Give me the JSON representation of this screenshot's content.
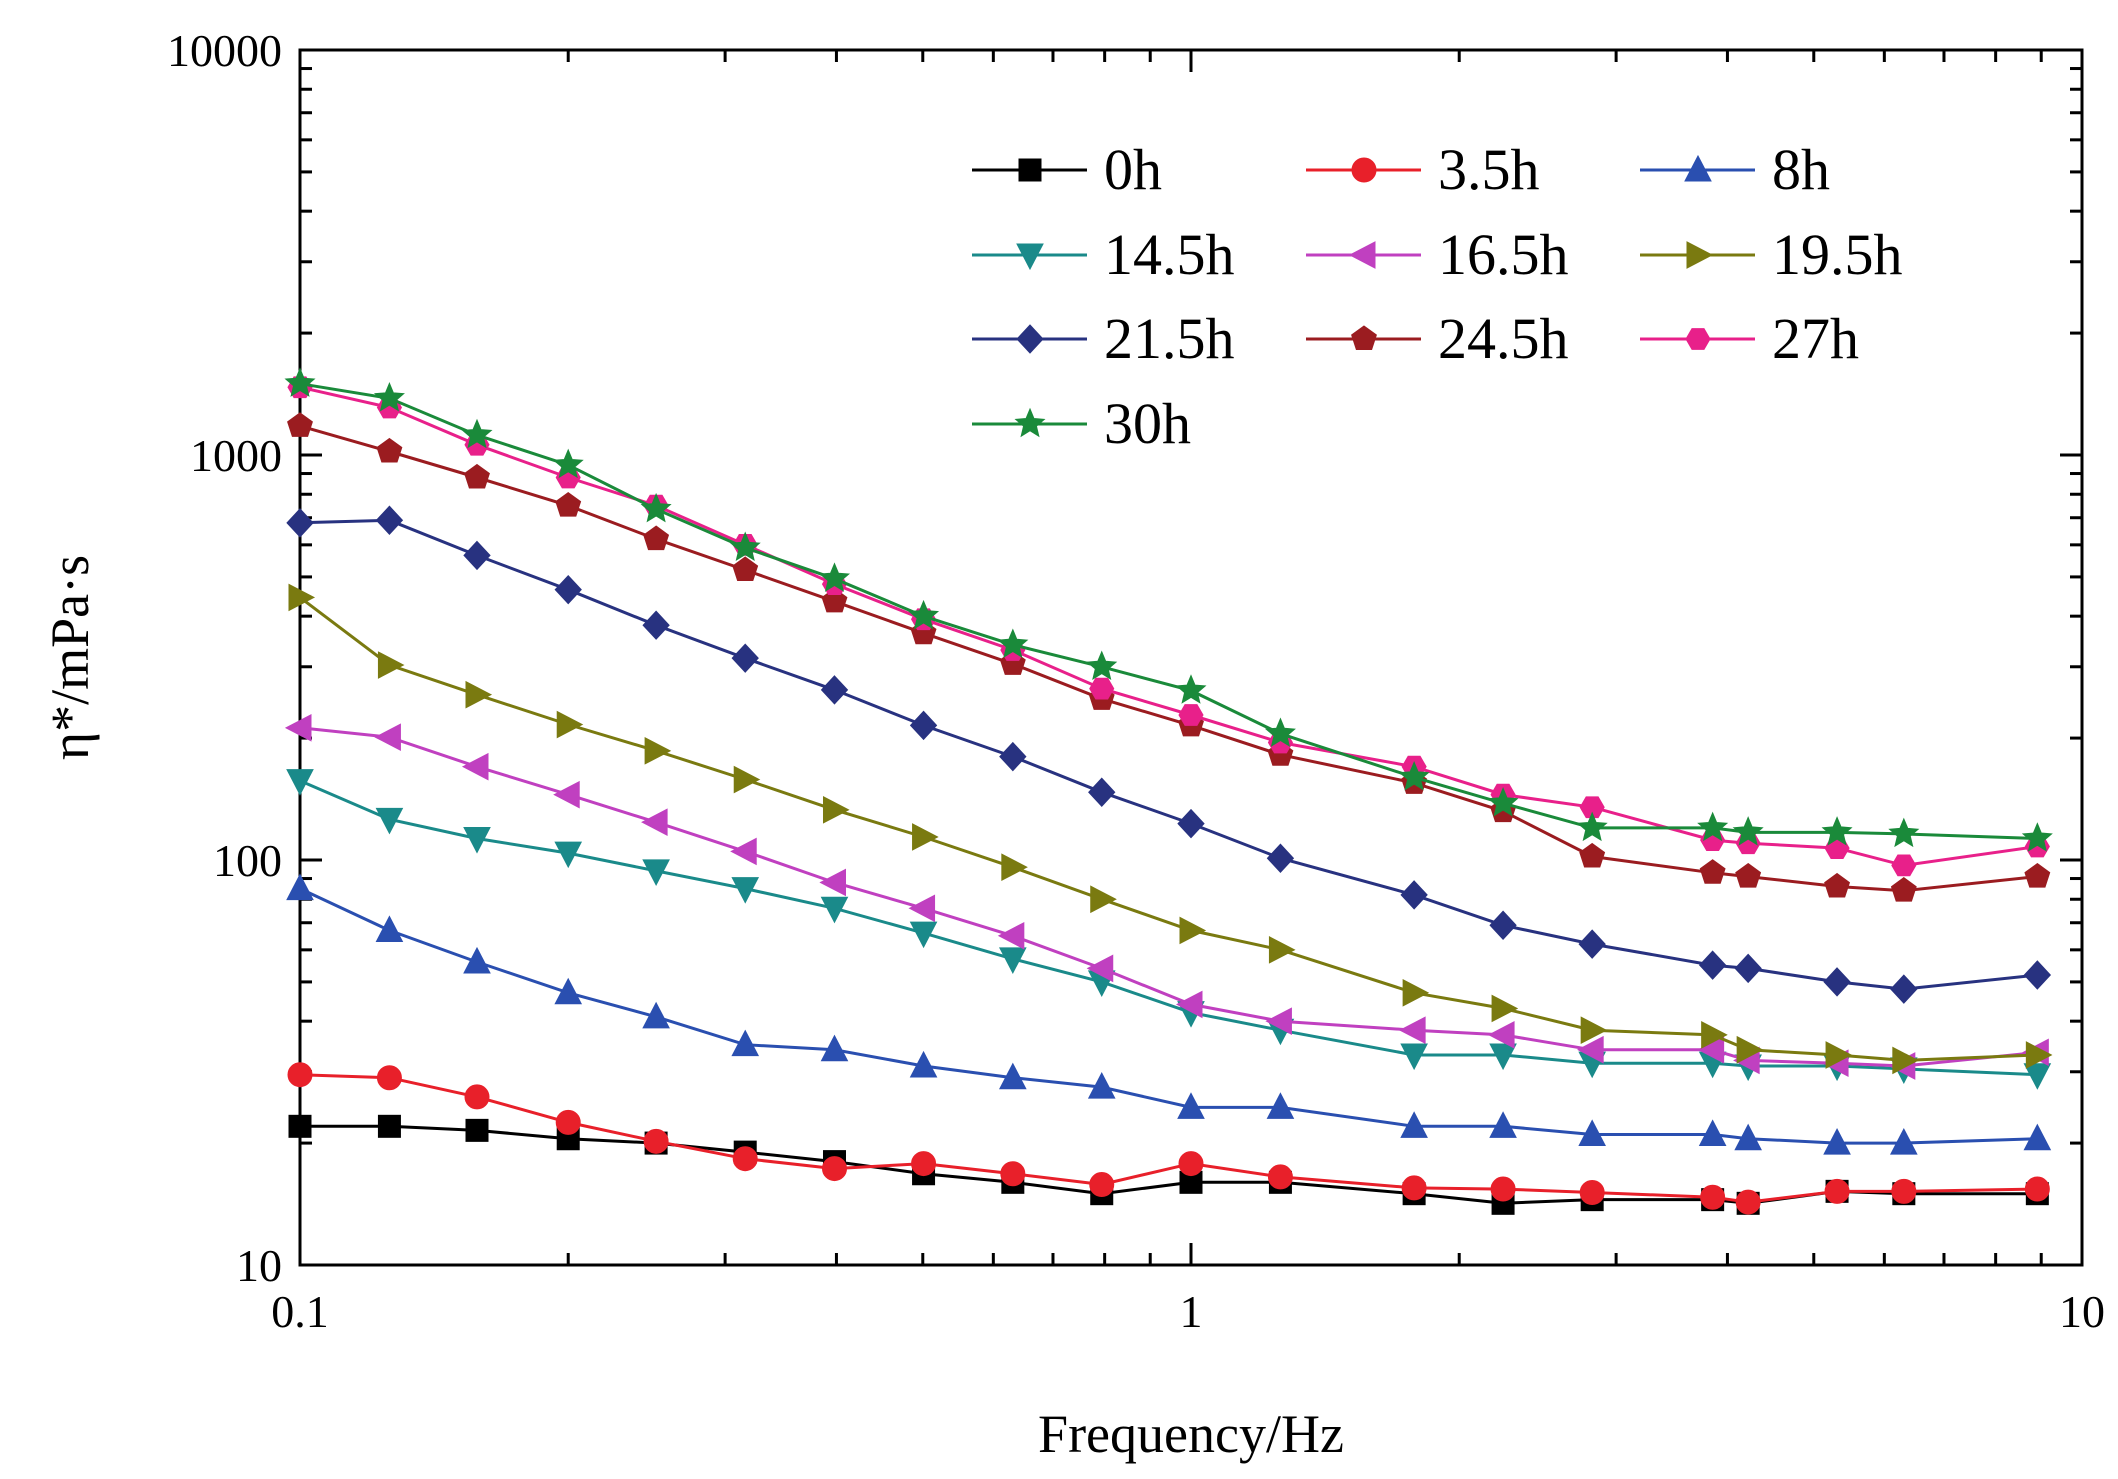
{
  "chart_data": {
    "type": "line",
    "title": "",
    "xlabel": "Frequency/Hz",
    "ylabel": "η*/mPa·s",
    "xscale": "log",
    "yscale": "log",
    "xlim": [
      0.1,
      10
    ],
    "ylim": [
      10,
      10000
    ],
    "xticks": [
      0.1,
      1,
      10
    ],
    "xtick_labels": [
      "0.1",
      "1",
      "10"
    ],
    "yticks": [
      10,
      100,
      1000,
      10000
    ],
    "ytick_labels": [
      "10",
      "100",
      "1000",
      "10000"
    ],
    "grid": false,
    "legend_position": "top-right",
    "x": [
      0.1,
      0.126,
      0.158,
      0.2,
      0.251,
      0.316,
      0.398,
      0.501,
      0.631,
      0.794,
      1.0,
      1.26,
      1.78,
      2.24,
      2.82,
      3.85,
      4.22,
      5.31,
      6.31,
      8.91
    ],
    "series": [
      {
        "name": "0h",
        "color": "#000000",
        "marker": "square",
        "values": [
          22,
          22,
          21.5,
          20.5,
          20,
          19,
          18,
          16.8,
          16,
          15,
          16,
          16,
          15,
          14.2,
          14.5,
          14.5,
          14.2,
          15.2,
          15,
          15
        ]
      },
      {
        "name": "3.5h",
        "color": "#e8202a",
        "marker": "circle",
        "values": [
          29.5,
          29,
          26,
          22.5,
          20.2,
          18.3,
          17.3,
          17.8,
          16.8,
          15.8,
          17.8,
          16.5,
          15.5,
          15.4,
          15.1,
          14.7,
          14.3,
          15.2,
          15.2,
          15.4
        ]
      },
      {
        "name": "8h",
        "color": "#2a4fb0",
        "marker": "triangle-up",
        "values": [
          85,
          67,
          56,
          47,
          41,
          35,
          34,
          31,
          29,
          27.5,
          24.5,
          24.5,
          22,
          22,
          21,
          21,
          20.5,
          20,
          20,
          20.5
        ]
      },
      {
        "name": "14.5h",
        "color": "#1a8a8a",
        "marker": "triangle-down",
        "values": [
          157,
          126,
          113,
          104,
          94,
          85,
          76,
          66,
          57,
          50,
          42,
          38,
          33,
          33,
          31.5,
          31.5,
          31,
          31,
          30.5,
          29.5
        ]
      },
      {
        "name": "16.5h",
        "color": "#c040c0",
        "marker": "triangle-left",
        "values": [
          212,
          201,
          170,
          145,
          124,
          105,
          88,
          76,
          65,
          54,
          44,
          40,
          38,
          37,
          34,
          34,
          32,
          31.5,
          31,
          33.5
        ]
      },
      {
        "name": "19.5h",
        "color": "#7a7a10",
        "marker": "triangle-right",
        "values": [
          445,
          303,
          256,
          216,
          186,
          158,
          133,
          114,
          96,
          80,
          67,
          60,
          47,
          43,
          38,
          37,
          34,
          33,
          32,
          33
        ]
      },
      {
        "name": "21.5h",
        "color": "#283280",
        "marker": "diamond",
        "values": [
          680,
          690,
          565,
          465,
          380,
          315,
          263,
          215,
          180,
          147,
          123,
          101,
          82,
          69,
          62,
          55,
          54,
          50,
          48,
          52
        ]
      },
      {
        "name": "24.5h",
        "color": "#9b1c20",
        "marker": "pentagon",
        "values": [
          1180,
          1020,
          880,
          750,
          620,
          520,
          435,
          363,
          305,
          250,
          215,
          182,
          155,
          132,
          102,
          93,
          91,
          86,
          84,
          91
        ]
      },
      {
        "name": "27h",
        "color": "#e8208a",
        "marker": "hexagon",
        "values": [
          1470,
          1310,
          1060,
          880,
          750,
          600,
          480,
          393,
          330,
          265,
          228,
          195,
          170,
          145,
          135,
          112,
          110,
          107,
          97,
          108
        ]
      },
      {
        "name": "30h",
        "color": "#1a8a3a",
        "marker": "star",
        "values": [
          1500,
          1380,
          1120,
          945,
          735,
          590,
          495,
          400,
          340,
          300,
          262,
          205,
          160,
          138,
          120,
          120,
          117,
          117,
          116,
          113
        ]
      }
    ]
  }
}
